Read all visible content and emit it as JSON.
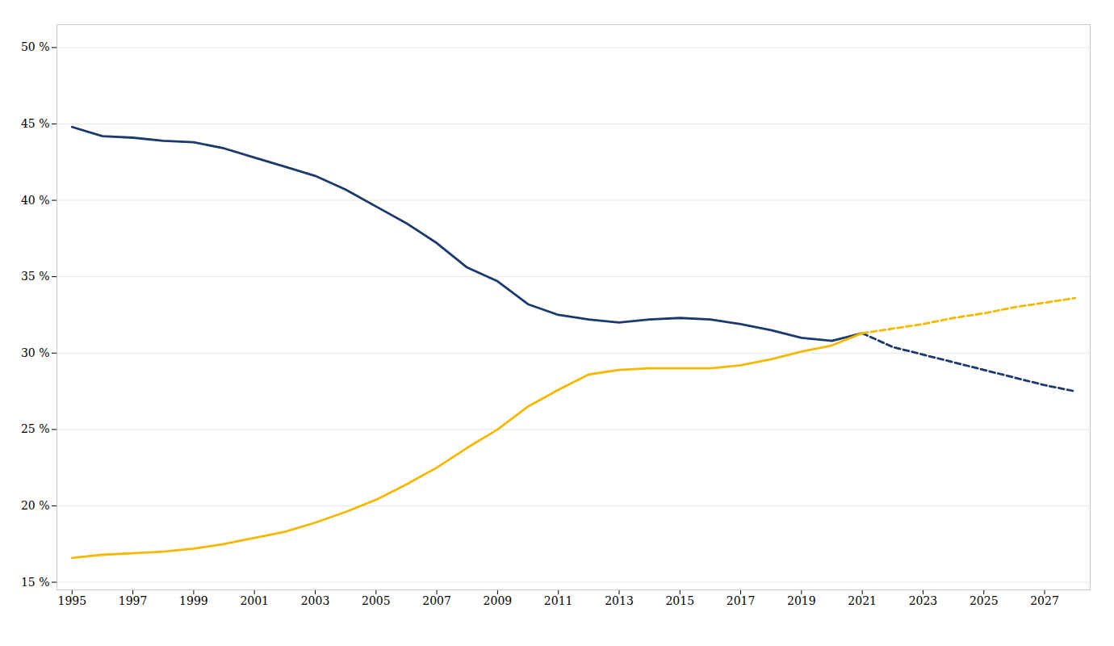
{
  "chart_data": {
    "type": "line",
    "x": [
      1995,
      1996,
      1997,
      1998,
      1999,
      2000,
      2001,
      2002,
      2003,
      2004,
      2005,
      2006,
      2007,
      2008,
      2009,
      2010,
      2011,
      2012,
      2013,
      2014,
      2015,
      2016,
      2017,
      2018,
      2019,
      2020,
      2021,
      2022,
      2023,
      2024,
      2025,
      2026,
      2027,
      2028
    ],
    "series": [
      {
        "color": "#1b3a6b",
        "line_style": "solid",
        "values": [
          44.8,
          44.2,
          44.1,
          43.9,
          43.8,
          43.4,
          42.8,
          42.2,
          41.6,
          40.7,
          39.6,
          38.5,
          37.2,
          35.6,
          34.7,
          33.2,
          32.5,
          32.2,
          32.0,
          32.2,
          32.3,
          32.2,
          31.9,
          31.5,
          31.0,
          30.8,
          31.3,
          null,
          null,
          null,
          null,
          null,
          null,
          null
        ]
      },
      {
        "color": "#1b3a6b",
        "line_style": "dashed",
        "values": [
          null,
          null,
          null,
          null,
          null,
          null,
          null,
          null,
          null,
          null,
          null,
          null,
          null,
          null,
          null,
          null,
          null,
          null,
          null,
          null,
          null,
          null,
          null,
          null,
          null,
          null,
          31.3,
          30.4,
          29.9,
          29.4,
          28.9,
          28.4,
          27.9,
          27.5
        ]
      },
      {
        "color": "#f5b800",
        "line_style": "solid",
        "values": [
          16.6,
          16.8,
          16.9,
          17.0,
          17.2,
          17.5,
          17.9,
          18.3,
          18.9,
          19.6,
          20.4,
          21.4,
          22.5,
          23.8,
          25.0,
          26.5,
          27.6,
          28.6,
          28.9,
          29.0,
          29.0,
          29.0,
          29.2,
          29.6,
          30.1,
          30.5,
          31.3,
          null,
          null,
          null,
          null,
          null,
          null,
          null
        ]
      },
      {
        "color": "#f5b800",
        "line_style": "dashed",
        "values": [
          null,
          null,
          null,
          null,
          null,
          null,
          null,
          null,
          null,
          null,
          null,
          null,
          null,
          null,
          null,
          null,
          null,
          null,
          null,
          null,
          null,
          null,
          null,
          null,
          null,
          null,
          31.3,
          31.6,
          31.9,
          32.3,
          32.6,
          33.0,
          33.3,
          33.6
        ]
      }
    ],
    "xlim": [
      1994.5,
      2028.5
    ],
    "xticks": [
      1995,
      1997,
      1999,
      2001,
      2003,
      2005,
      2007,
      2009,
      2011,
      2013,
      2015,
      2017,
      2019,
      2021,
      2023,
      2025,
      2027
    ],
    "ylim": [
      14.5,
      51.5
    ],
    "yticks": [
      {
        "value": 15,
        "label": "15 %"
      },
      {
        "value": 20,
        "label": "20 %"
      },
      {
        "value": 25,
        "label": "25 %"
      },
      {
        "value": 30,
        "label": "30 %"
      },
      {
        "value": 35,
        "label": "35 %"
      },
      {
        "value": 40,
        "label": "40 %"
      },
      {
        "value": 45,
        "label": "45 %"
      },
      {
        "value": 50,
        "label": "50 %"
      }
    ],
    "grid": "y"
  }
}
